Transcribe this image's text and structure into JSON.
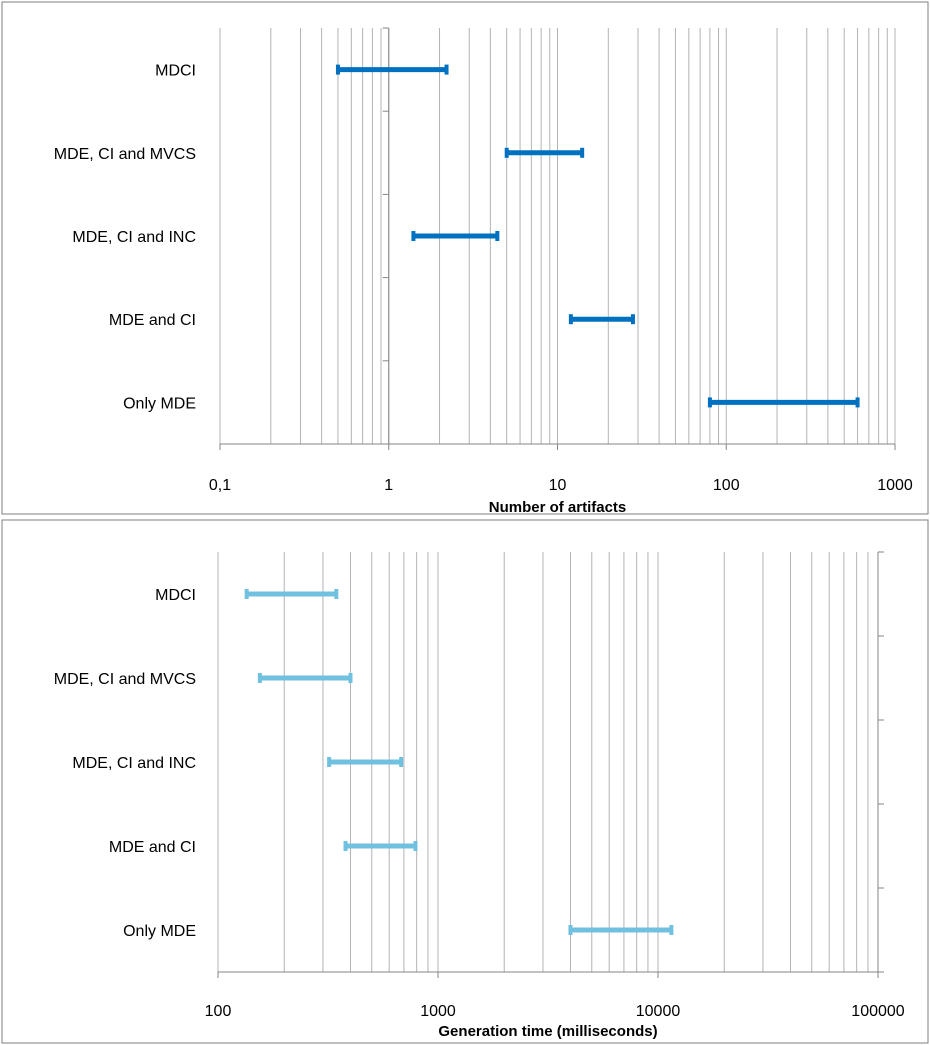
{
  "chart_data": [
    {
      "type": "range-bar",
      "xlabel": "Number of artifacts",
      "xscale": "log",
      "xlim": [
        0.1,
        1000
      ],
      "tick_labels": [
        "0,1",
        "1",
        "10",
        "100",
        "1000"
      ],
      "grid": true,
      "color": "#0070C0",
      "categories": [
        "MDCI",
        "MDE, CI and MVCS",
        "MDE, CI and INC",
        "MDE and CI",
        "Only MDE"
      ],
      "ranges": [
        [
          0.5,
          2.2
        ],
        [
          5,
          14
        ],
        [
          1.4,
          4.4
        ],
        [
          12,
          28
        ],
        [
          80,
          600
        ]
      ]
    },
    {
      "type": "range-bar",
      "xlabel": "Generation time (milliseconds)",
      "xscale": "log",
      "xlim": [
        100,
        100000
      ],
      "tick_labels": [
        "100",
        "1000",
        "10000",
        "100000"
      ],
      "grid": true,
      "color": "#70C0E0",
      "categories": [
        "MDCI",
        "MDE, CI and MVCS",
        "MDE, CI and INC",
        "MDE and CI",
        "Only MDE"
      ],
      "ranges": [
        [
          135,
          345
        ],
        [
          155,
          400
        ],
        [
          320,
          680
        ],
        [
          380,
          790
        ],
        [
          4000,
          11500
        ]
      ]
    }
  ]
}
